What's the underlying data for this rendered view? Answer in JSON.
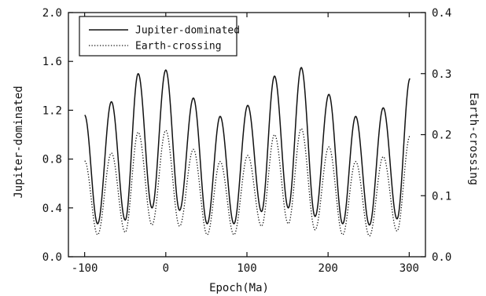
{
  "chart_data": {
    "type": "line",
    "xlabel": "Epoch(Ma)",
    "ylabel_left": "Jupiter-dominated",
    "ylabel_right": "Earth-crossing",
    "xlim": [
      -120,
      320
    ],
    "ylim_left": [
      0.0,
      2.0
    ],
    "ylim_right": [
      0.0,
      0.4
    ],
    "x_ticks": [
      -100,
      0,
      100,
      200,
      300
    ],
    "y_left_ticks": [
      0.0,
      0.4,
      0.8,
      1.2,
      1.6,
      2.0
    ],
    "y_right_ticks": [
      0.0,
      0.1,
      0.2,
      0.3,
      0.4
    ],
    "x_tick_labels": [
      "-100",
      "0",
      "100",
      "200",
      "300"
    ],
    "y_left_tick_labels": [
      "0.0",
      "0.4",
      "0.8",
      "1.2",
      "1.6",
      "2.0"
    ],
    "y_right_tick_labels": [
      "0.0",
      "0.1",
      "0.2",
      "0.3",
      "0.4"
    ],
    "grid": false,
    "legend": {
      "position": "top-left",
      "entries": [
        {
          "label": "Jupiter-dominated",
          "style": "solid"
        },
        {
          "label": "Earth-crossing",
          "style": "dotted"
        }
      ]
    },
    "series": [
      {
        "name": "Jupiter-dominated",
        "axis": "left",
        "style": "solid",
        "color": "#111111",
        "start": {
          "x": -100,
          "y": 1.16
        },
        "troughs": [
          {
            "x": -84,
            "y": 0.27
          },
          {
            "x": -50,
            "y": 0.3
          },
          {
            "x": -17,
            "y": 0.4
          },
          {
            "x": 17,
            "y": 0.38
          },
          {
            "x": 51,
            "y": 0.27
          },
          {
            "x": 84,
            "y": 0.27
          },
          {
            "x": 118,
            "y": 0.37
          },
          {
            "x": 151,
            "y": 0.4
          },
          {
            "x": 184,
            "y": 0.33
          },
          {
            "x": 218,
            "y": 0.27
          },
          {
            "x": 251,
            "y": 0.26
          },
          {
            "x": 285,
            "y": 0.31
          }
        ],
        "peaks": [
          {
            "x": -67,
            "y": 1.27
          },
          {
            "x": -34,
            "y": 1.5
          },
          {
            "x": 0,
            "y": 1.53
          },
          {
            "x": 34,
            "y": 1.3
          },
          {
            "x": 67,
            "y": 1.15
          },
          {
            "x": 101,
            "y": 1.24
          },
          {
            "x": 134,
            "y": 1.48
          },
          {
            "x": 167,
            "y": 1.55
          },
          {
            "x": 201,
            "y": 1.33
          },
          {
            "x": 234,
            "y": 1.15
          },
          {
            "x": 268,
            "y": 1.22
          }
        ],
        "end": {
          "x": 301,
          "y": 1.46
        }
      },
      {
        "name": "Earth-crossing",
        "axis": "right",
        "style": "dotted",
        "color": "#111111",
        "start": {
          "x": -100,
          "y": 0.157
        },
        "troughs": [
          {
            "x": -84,
            "y": 0.036
          },
          {
            "x": -50,
            "y": 0.04
          },
          {
            "x": -17,
            "y": 0.052
          },
          {
            "x": 17,
            "y": 0.05
          },
          {
            "x": 51,
            "y": 0.036
          },
          {
            "x": 84,
            "y": 0.036
          },
          {
            "x": 118,
            "y": 0.05
          },
          {
            "x": 151,
            "y": 0.054
          },
          {
            "x": 184,
            "y": 0.044
          },
          {
            "x": 218,
            "y": 0.036
          },
          {
            "x": 251,
            "y": 0.034
          },
          {
            "x": 285,
            "y": 0.042
          }
        ],
        "peaks": [
          {
            "x": -67,
            "y": 0.17
          },
          {
            "x": -34,
            "y": 0.204
          },
          {
            "x": 0,
            "y": 0.207
          },
          {
            "x": 34,
            "y": 0.176
          },
          {
            "x": 67,
            "y": 0.156
          },
          {
            "x": 101,
            "y": 0.166
          },
          {
            "x": 134,
            "y": 0.2
          },
          {
            "x": 167,
            "y": 0.21
          },
          {
            "x": 201,
            "y": 0.18
          },
          {
            "x": 234,
            "y": 0.156
          },
          {
            "x": 268,
            "y": 0.164
          }
        ],
        "end": {
          "x": 301,
          "y": 0.198
        }
      }
    ]
  }
}
